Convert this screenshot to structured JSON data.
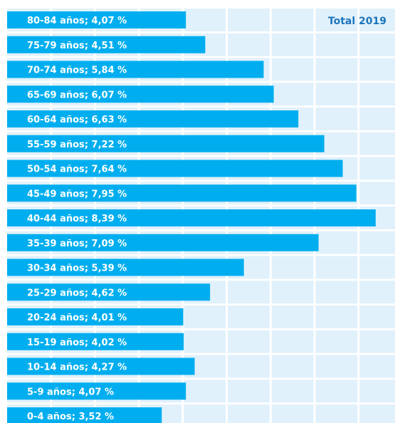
{
  "chart_data": {
    "type": "bar",
    "orientation": "horizontal",
    "title": "Total 2019",
    "categories": [
      "80-84 años",
      "75-79 años",
      "70-74 años",
      "65-69 años",
      "60-64 años",
      "55-59 años",
      "50-54 años",
      "45-49 años",
      "40-44 años",
      "35-39 años",
      "30-34 años",
      "25-29 años",
      "20-24 años",
      "15-19 años",
      "10-14 años",
      "5-9 años",
      "0-4 años"
    ],
    "separator": "; ",
    "values": [
      4.07,
      4.51,
      5.84,
      6.07,
      6.63,
      7.22,
      7.64,
      7.95,
      8.39,
      7.09,
      5.39,
      4.62,
      4.01,
      4.02,
      4.27,
      4.07,
      3.52
    ],
    "value_labels": [
      "4,07 %",
      "4,51 %",
      "5,84 %",
      "6,07 %",
      "6,63 %",
      "7,22 %",
      "7,64 %",
      "7,95 %",
      "8,39 %",
      "7,09 %",
      "5,39 %",
      "4,62 %",
      "4,01 %",
      "4,02 %",
      "4,27 %",
      "4,07 %",
      "3,52 %"
    ],
    "color": "#00aeef",
    "background_color": "#e1f1fb",
    "title_color": "#1b75bc",
    "xlim": [
      0,
      8.83
    ],
    "xticks": [
      1,
      2,
      3,
      4,
      5,
      6,
      7,
      8
    ],
    "grid": true
  }
}
